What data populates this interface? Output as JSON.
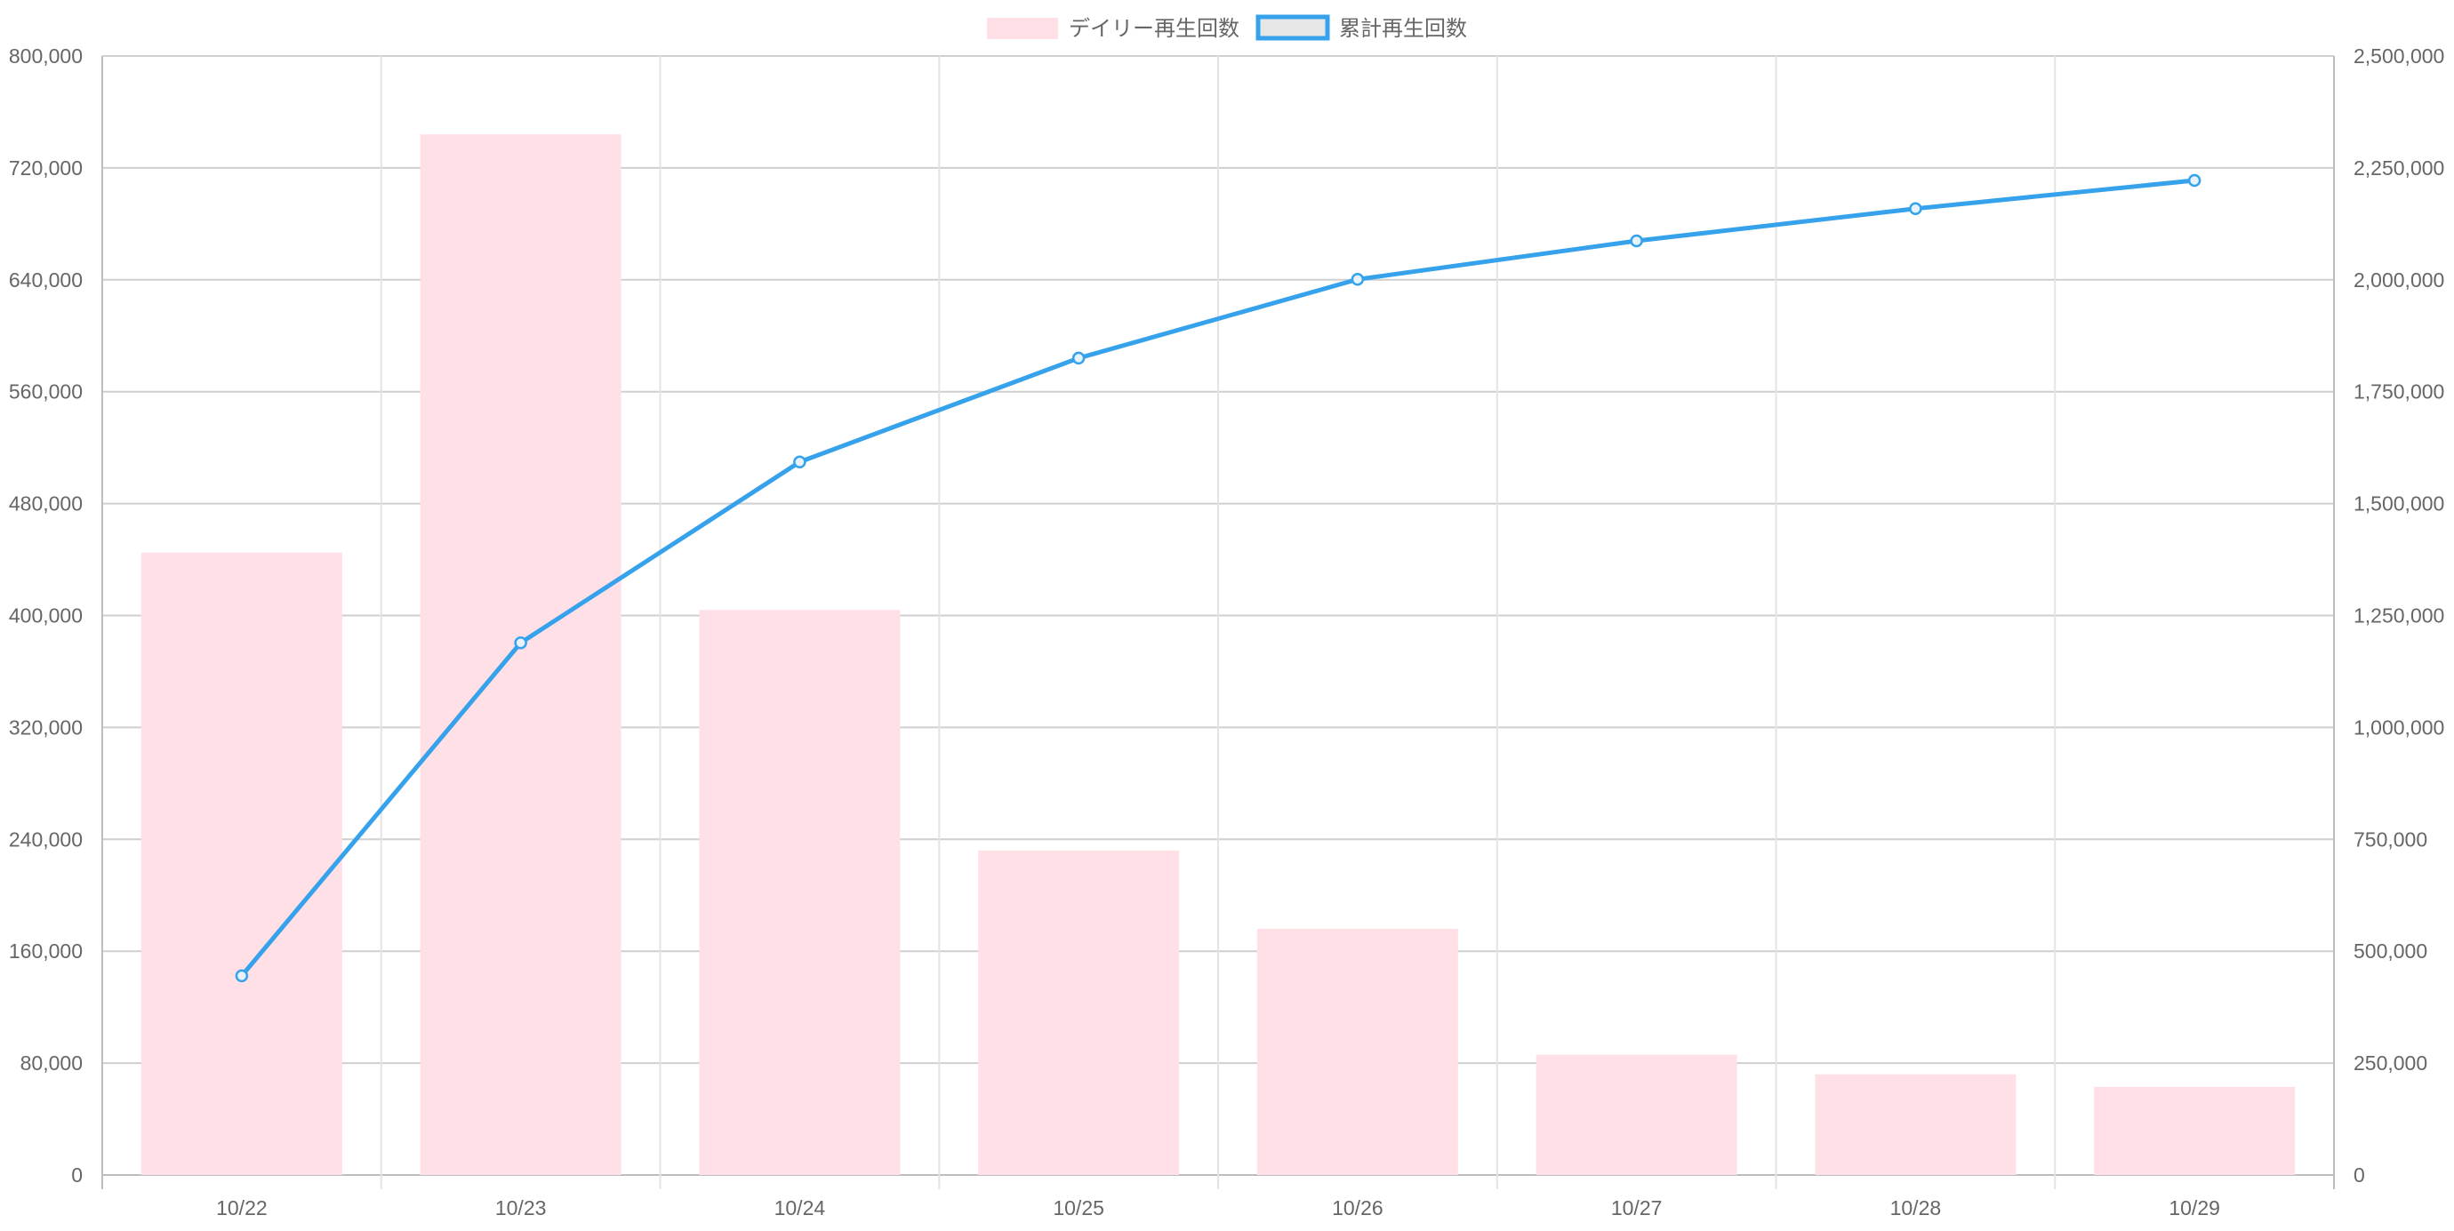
{
  "chart_data": {
    "type": "bar",
    "title": "",
    "categories": [
      "10/22",
      "10/23",
      "10/24",
      "10/25",
      "10/26",
      "10/27",
      "10/28",
      "10/29"
    ],
    "legend_position": "top-center",
    "grid": true,
    "series": [
      {
        "name": "デイリー再生回数",
        "type": "bar",
        "axis": "left",
        "color": "#ffe0e6",
        "values": [
          445000,
          744000,
          404000,
          232000,
          176000,
          86000,
          72000,
          63000
        ]
      },
      {
        "name": "累計再生回数",
        "type": "line",
        "axis": "right",
        "color": "#36a2eb",
        "values": [
          445000,
          1189000,
          1593000,
          1825000,
          2001000,
          2087000,
          2159000,
          2222000
        ]
      }
    ],
    "y_left": {
      "min": 0,
      "max": 800000,
      "ticks": [
        "0",
        "80,000",
        "160,000",
        "240,000",
        "320,000",
        "400,000",
        "480,000",
        "560,000",
        "640,000",
        "720,000",
        "800,000"
      ]
    },
    "y_right": {
      "min": 0,
      "max": 2500000,
      "ticks": [
        "0",
        "250,000",
        "500,000",
        "750,000",
        "1,000,000",
        "1,250,000",
        "1,500,000",
        "1,750,000",
        "2,000,000",
        "2,250,000",
        "2,500,000"
      ]
    }
  }
}
